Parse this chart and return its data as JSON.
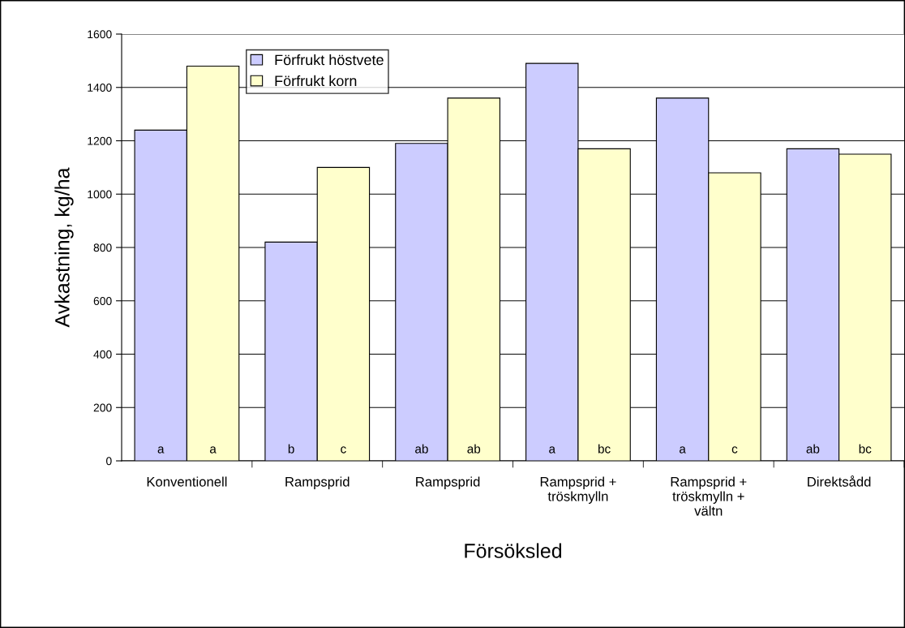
{
  "chart_data": {
    "type": "bar",
    "xlabel": "Försöksled",
    "ylabel": "Avkastning, kg/ha",
    "categories": [
      "Konventionell",
      "Rampsprid",
      "Rampsprid",
      "Rampsprid +\ntröskmylln",
      "Rampsprid +\ntröskmylln +\nvältn",
      "Direktsådd"
    ],
    "series": [
      {
        "name": "Förfrukt höstvete",
        "color": "#ccccff",
        "values": [
          1240,
          820,
          1190,
          1490,
          1360,
          1170
        ],
        "value_labels": [
          "a",
          "b",
          "ab",
          "a",
          "a",
          "ab"
        ]
      },
      {
        "name": "Förfrukt korn",
        "color": "#ffffcc",
        "values": [
          1480,
          1100,
          1360,
          1170,
          1080,
          1150
        ],
        "value_labels": [
          "a",
          "c",
          "ab",
          "bc",
          "c",
          "bc"
        ]
      }
    ],
    "ylim": [
      0,
      1600
    ],
    "yticks": [
      0,
      200,
      400,
      600,
      800,
      1000,
      1200,
      1400,
      1600
    ],
    "grid": "y",
    "legend": "top left"
  }
}
